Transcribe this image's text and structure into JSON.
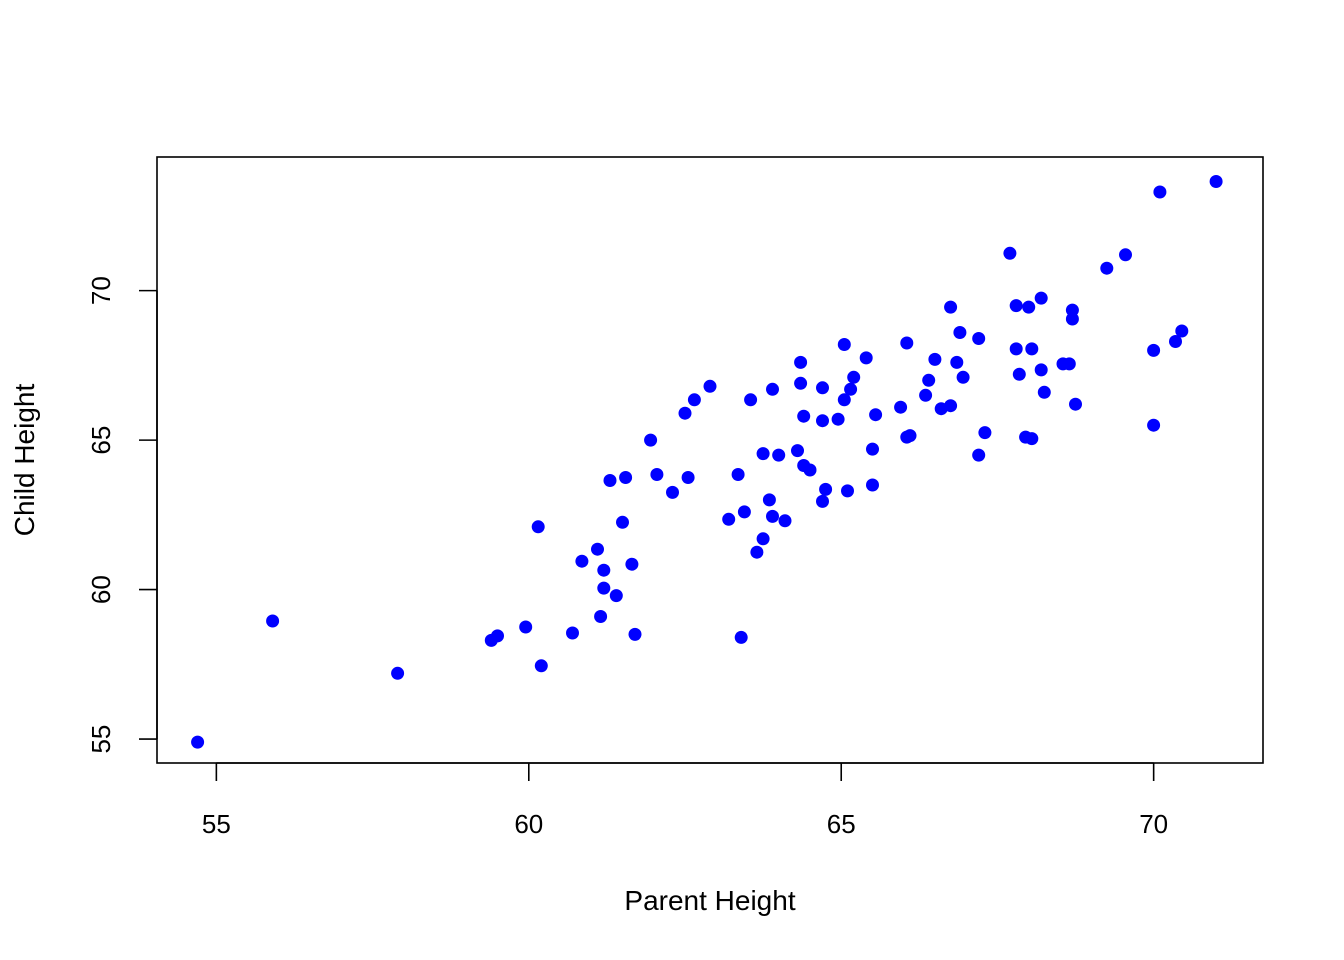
{
  "chart_data": {
    "type": "scatter",
    "title": "",
    "xlabel": "Parent Height",
    "ylabel": "Child Height",
    "xlim": [
      54.05,
      71.75
    ],
    "ylim": [
      54.2,
      74.47
    ],
    "x_ticks": [
      55,
      60,
      65,
      70
    ],
    "y_ticks": [
      55,
      60,
      65,
      70
    ],
    "x_tick_labels": [
      "55",
      "60",
      "65",
      "70"
    ],
    "y_tick_labels": [
      "55",
      "60",
      "65",
      "70"
    ],
    "grid": false,
    "legend": "none",
    "marker_color": "#0000ff",
    "series": [
      {
        "points": [
          [
            54.7,
            54.9
          ],
          [
            55.9,
            58.95
          ],
          [
            57.9,
            57.2
          ],
          [
            59.4,
            58.3
          ],
          [
            59.5,
            58.45
          ],
          [
            59.95,
            58.75
          ],
          [
            60.15,
            62.1
          ],
          [
            60.2,
            57.45
          ],
          [
            60.7,
            58.55
          ],
          [
            60.85,
            60.95
          ],
          [
            61.1,
            61.35
          ],
          [
            61.15,
            59.1
          ],
          [
            61.2,
            60.05
          ],
          [
            61.2,
            60.65
          ],
          [
            61.3,
            63.65
          ],
          [
            61.4,
            59.8
          ],
          [
            61.5,
            62.25
          ],
          [
            61.55,
            63.75
          ],
          [
            61.65,
            60.85
          ],
          [
            61.7,
            58.5
          ],
          [
            61.95,
            65.0
          ],
          [
            62.05,
            63.85
          ],
          [
            62.3,
            63.25
          ],
          [
            62.5,
            65.9
          ],
          [
            62.55,
            63.75
          ],
          [
            62.65,
            66.35
          ],
          [
            62.9,
            66.8
          ],
          [
            63.2,
            62.35
          ],
          [
            63.35,
            63.85
          ],
          [
            63.4,
            58.4
          ],
          [
            63.45,
            62.6
          ],
          [
            63.55,
            66.35
          ],
          [
            63.65,
            61.25
          ],
          [
            63.75,
            61.7
          ],
          [
            63.75,
            64.55
          ],
          [
            63.85,
            63.0
          ],
          [
            63.9,
            62.45
          ],
          [
            63.9,
            66.7
          ],
          [
            64.0,
            64.5
          ],
          [
            64.1,
            62.3
          ],
          [
            64.3,
            64.65
          ],
          [
            64.35,
            67.6
          ],
          [
            64.35,
            66.9
          ],
          [
            64.4,
            65.8
          ],
          [
            64.4,
            64.15
          ],
          [
            64.5,
            64.0
          ],
          [
            64.7,
            65.65
          ],
          [
            64.7,
            62.95
          ],
          [
            64.7,
            66.75
          ],
          [
            64.75,
            63.35
          ],
          [
            64.95,
            65.7
          ],
          [
            65.05,
            66.35
          ],
          [
            65.05,
            68.2
          ],
          [
            65.1,
            63.3
          ],
          [
            65.15,
            66.7
          ],
          [
            65.2,
            67.1
          ],
          [
            65.4,
            67.75
          ],
          [
            65.5,
            63.5
          ],
          [
            65.5,
            64.7
          ],
          [
            65.55,
            65.85
          ],
          [
            65.95,
            66.1
          ],
          [
            66.05,
            68.25
          ],
          [
            66.05,
            65.1
          ],
          [
            66.1,
            65.15
          ],
          [
            66.35,
            66.5
          ],
          [
            66.4,
            67.0
          ],
          [
            66.5,
            67.7
          ],
          [
            66.6,
            66.05
          ],
          [
            66.75,
            69.45
          ],
          [
            66.75,
            66.15
          ],
          [
            66.85,
            67.6
          ],
          [
            66.9,
            68.6
          ],
          [
            66.95,
            67.1
          ],
          [
            67.2,
            68.4
          ],
          [
            67.2,
            64.5
          ],
          [
            67.3,
            65.25
          ],
          [
            67.7,
            71.25
          ],
          [
            67.8,
            69.5
          ],
          [
            67.8,
            68.05
          ],
          [
            67.85,
            67.2
          ],
          [
            67.95,
            65.1
          ],
          [
            68.0,
            69.45
          ],
          [
            68.05,
            68.05
          ],
          [
            68.05,
            65.05
          ],
          [
            68.2,
            67.35
          ],
          [
            68.2,
            69.75
          ],
          [
            68.25,
            66.6
          ],
          [
            68.55,
            67.55
          ],
          [
            68.65,
            67.55
          ],
          [
            68.7,
            69.05
          ],
          [
            68.7,
            69.35
          ],
          [
            68.75,
            66.2
          ],
          [
            69.25,
            70.75
          ],
          [
            69.55,
            71.2
          ],
          [
            70.0,
            65.5
          ],
          [
            70.0,
            68.0
          ],
          [
            70.1,
            73.3
          ],
          [
            70.35,
            68.3
          ],
          [
            70.45,
            68.65
          ],
          [
            71.0,
            73.65
          ]
        ]
      }
    ]
  }
}
